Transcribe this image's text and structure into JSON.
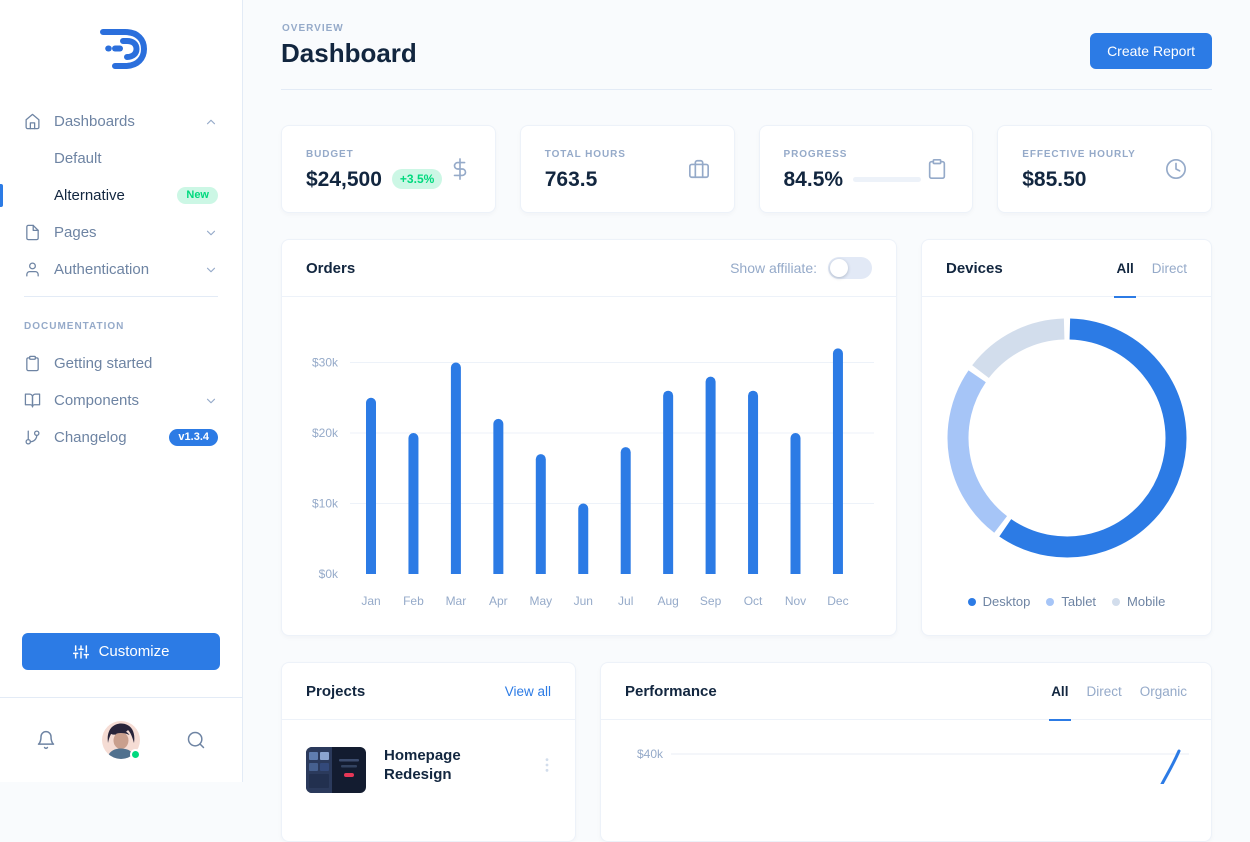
{
  "colors": {
    "primary": "#2c7be5",
    "text_dark": "#12263f",
    "text_muted": "#95aac9",
    "sidebar_link": "#6e84a3",
    "border": "#e3ebf6",
    "card_border": "#edf2f9",
    "background": "#f9fbfd",
    "success": "#00d97e",
    "success_bg": "#ccf7e5"
  },
  "sidebar": {
    "nav": [
      {
        "label": "Dashboards",
        "icon": "home",
        "chevron": "up"
      },
      {
        "label": "Default",
        "child": true
      },
      {
        "label": "Alternative",
        "child": true,
        "active": true,
        "badge": {
          "text": "New",
          "style": "success"
        }
      },
      {
        "label": "Pages",
        "icon": "file",
        "chevron": "down"
      },
      {
        "label": "Authentication",
        "icon": "user",
        "chevron": "down"
      }
    ],
    "section_label": "Documentation",
    "docs_nav": [
      {
        "label": "Getting started",
        "icon": "clipboard"
      },
      {
        "label": "Components",
        "icon": "book",
        "chevron": "down"
      },
      {
        "label": "Changelog",
        "icon": "git-branch",
        "badge": {
          "text": "v1.3.4",
          "style": "primary"
        }
      }
    ],
    "customize_label": "Customize"
  },
  "header": {
    "pretitle": "Overview",
    "title": "Dashboard",
    "button_label": "Create Report"
  },
  "stats": [
    {
      "label": "Budget",
      "value": "$24,500",
      "badge": "+3.5%",
      "icon": "dollar"
    },
    {
      "label": "Total hours",
      "value": "763.5",
      "icon": "briefcase"
    },
    {
      "label": "Progress",
      "value": "84.5%",
      "progress_pct": 84.5,
      "icon": "clipboard"
    },
    {
      "label": "Effective hourly",
      "value": "$85.50",
      "icon": "clock"
    }
  ],
  "orders": {
    "title": "Orders",
    "toggle_label": "Show affiliate:",
    "toggle_state": "off"
  },
  "devices": {
    "title": "Devices",
    "tabs": [
      {
        "label": "All",
        "active": true
      },
      {
        "label": "Direct",
        "active": false
      }
    ]
  },
  "projects": {
    "title": "Projects",
    "view_all_label": "View all",
    "items": [
      {
        "title": "Homepage Redesign",
        "menu_icon": "more-vertical"
      }
    ]
  },
  "performance": {
    "title": "Performance",
    "tabs": [
      {
        "label": "All",
        "active": true
      },
      {
        "label": "Direct",
        "active": false
      },
      {
        "label": "Organic",
        "active": false
      }
    ]
  },
  "chart_data": [
    {
      "id": "orders",
      "type": "bar",
      "title": "Orders",
      "categories": [
        "Jan",
        "Feb",
        "Mar",
        "Apr",
        "May",
        "Jun",
        "Jul",
        "Aug",
        "Sep",
        "Oct",
        "Nov",
        "Dec"
      ],
      "values": [
        25000,
        20000,
        30000,
        22000,
        17000,
        10000,
        18000,
        26000,
        28000,
        26000,
        20000,
        32000
      ],
      "ytick_labels": [
        "$0k",
        "$10k",
        "$20k",
        "$30k"
      ],
      "ytick_values": [
        0,
        10000,
        20000,
        30000
      ],
      "ylim": [
        0,
        36400
      ],
      "bar_color": "#2c7be5",
      "grid": true,
      "legend": false
    },
    {
      "id": "devices",
      "type": "pie",
      "title": "Devices",
      "labels": [
        "Desktop",
        "Tablet",
        "Mobile"
      ],
      "values": [
        60,
        25,
        15
      ],
      "colors": [
        "#2c7be5",
        "#a6c5f7",
        "#d2ddec"
      ],
      "donut": true,
      "legend_position": "bottom"
    },
    {
      "id": "performance",
      "type": "line",
      "title": "Performance",
      "ytick_labels": [
        "$40k"
      ],
      "line_color": "#2c7be5",
      "grid": true,
      "visible_region": "only top edge of chart visible; blue line rises past the $40k gridline at far right"
    }
  ]
}
